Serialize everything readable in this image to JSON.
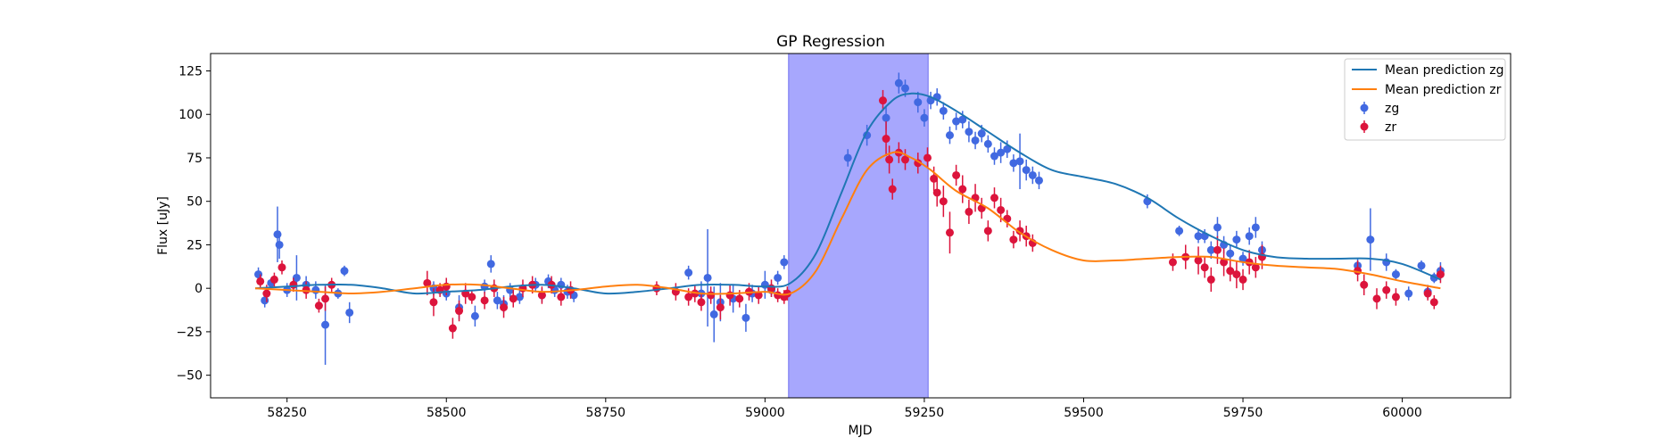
{
  "chart_data": {
    "type": "scatter",
    "title": "GP Regression",
    "xlabel": "MJD",
    "ylabel": "Flux [uJy]",
    "xlim": [
      58130,
      60170
    ],
    "ylim": [
      -63,
      135
    ],
    "xticks": [
      58250,
      58500,
      58750,
      59000,
      59250,
      59500,
      59750,
      60000
    ],
    "yticks": [
      -50,
      -25,
      0,
      25,
      50,
      75,
      100,
      125
    ],
    "grid": false,
    "legend_position": "top-right",
    "shaded_region": {
      "x0": 59037,
      "x1": 59256,
      "color": "#a7a7fd"
    },
    "series": [
      {
        "name": "Mean prediction zg",
        "kind": "line",
        "color": "#1f77b4",
        "x": [
          58200,
          58250,
          58300,
          58350,
          58400,
          58450,
          58500,
          58550,
          58600,
          58650,
          58700,
          58750,
          58800,
          58850,
          58900,
          58950,
          59000,
          59040,
          59080,
          59120,
          59160,
          59200,
          59230,
          59260,
          59300,
          59350,
          59400,
          59450,
          59500,
          59550,
          59600,
          59650,
          59700,
          59750,
          59800,
          59850,
          59900,
          59950,
          60000,
          60060
        ],
        "y": [
          0,
          1,
          2,
          2,
          0,
          -3,
          -2,
          -1,
          1,
          2,
          0,
          -3,
          -2,
          0,
          2,
          2,
          1,
          3,
          20,
          55,
          90,
          108,
          112,
          110,
          102,
          90,
          78,
          68,
          64,
          60,
          52,
          40,
          30,
          22,
          18,
          17,
          17,
          17,
          14,
          5
        ]
      },
      {
        "name": "Mean prediction zr",
        "kind": "line",
        "color": "#ff7f0e",
        "x": [
          58200,
          58250,
          58300,
          58350,
          58400,
          58450,
          58500,
          58550,
          58600,
          58650,
          58700,
          58750,
          58800,
          58850,
          58900,
          58950,
          59000,
          59040,
          59080,
          59120,
          59160,
          59200,
          59230,
          59260,
          59300,
          59350,
          59400,
          59450,
          59500,
          59550,
          59600,
          59650,
          59700,
          59750,
          59800,
          59850,
          59900,
          59950,
          60000,
          60060
        ],
        "y": [
          0,
          -1,
          -2,
          -3,
          -2,
          0,
          2,
          2,
          0,
          -2,
          -1,
          1,
          2,
          0,
          -3,
          -3,
          -2,
          -3,
          10,
          40,
          68,
          78,
          75,
          68,
          56,
          46,
          32,
          22,
          16,
          16,
          17,
          18,
          18,
          15,
          13,
          12,
          11,
          8,
          4,
          0
        ]
      },
      {
        "name": "zg",
        "kind": "errorbar",
        "color": "#4169e1",
        "x": [
          58205,
          58215,
          58225,
          58235,
          58238,
          58250,
          58265,
          58280,
          58295,
          58310,
          58330,
          58340,
          58348,
          58480,
          58500,
          58520,
          58545,
          58560,
          58570,
          58580,
          58590,
          58600,
          58615,
          58640,
          58650,
          58660,
          58670,
          58680,
          58690,
          58700,
          58880,
          58900,
          58910,
          58920,
          58930,
          58950,
          58970,
          58980,
          59000,
          59010,
          59020,
          59030,
          59130,
          59160,
          59190,
          59210,
          59220,
          59240,
          59250,
          59260,
          59270,
          59280,
          59290,
          59300,
          59310,
          59320,
          59330,
          59340,
          59350,
          59360,
          59370,
          59380,
          59390,
          59400,
          59410,
          59420,
          59430,
          59600,
          59650,
          59680,
          59690,
          59700,
          59710,
          59720,
          59730,
          59740,
          59750,
          59760,
          59770,
          59780,
          59930,
          59950,
          59975,
          59990,
          60010,
          60030,
          60040,
          60050,
          60060
        ],
        "y": [
          8,
          -7,
          3,
          31,
          25,
          -1,
          6,
          2,
          -1,
          -21,
          -3,
          10,
          -14,
          0,
          -3,
          -11,
          -16,
          1,
          14,
          -7,
          -9,
          -1,
          -5,
          2,
          -4,
          4,
          -1,
          2,
          -2,
          -4,
          9,
          -3,
          6,
          -15,
          -8,
          -6,
          -17,
          -3,
          2,
          -1,
          6,
          15,
          75,
          88,
          98,
          118,
          115,
          107,
          98,
          108,
          110,
          102,
          88,
          96,
          97,
          90,
          85,
          89,
          83,
          76,
          78,
          80,
          72,
          73,
          68,
          65,
          62,
          50,
          33,
          30,
          30,
          22,
          35,
          25,
          20,
          28,
          17,
          30,
          35,
          22,
          13,
          28,
          15,
          8,
          -3,
          13,
          -2,
          6,
          10
        ],
        "err": [
          4,
          4,
          3,
          16,
          8,
          4,
          13,
          5,
          5,
          23,
          3,
          3,
          6,
          4,
          4,
          7,
          6,
          4,
          5,
          5,
          5,
          4,
          4,
          4,
          4,
          4,
          4,
          4,
          4,
          4,
          4,
          7,
          28,
          16,
          11,
          8,
          8,
          5,
          8,
          4,
          4,
          4,
          5,
          6,
          7,
          6,
          5,
          6,
          5,
          5,
          5,
          5,
          5,
          5,
          5,
          6,
          5,
          5,
          5,
          5,
          6,
          5,
          5,
          16,
          6,
          5,
          5,
          4,
          3,
          4,
          4,
          5,
          6,
          5,
          5,
          5,
          4,
          5,
          6,
          5,
          4,
          18,
          5,
          3,
          4,
          3,
          4,
          3,
          5
        ]
      },
      {
        "name": "zr",
        "kind": "errorbar",
        "color": "#dc143c",
        "x": [
          58208,
          58218,
          58230,
          58242,
          58260,
          58280,
          58300,
          58310,
          58320,
          58470,
          58480,
          58490,
          58500,
          58510,
          58520,
          58530,
          58540,
          58560,
          58575,
          58590,
          58605,
          58620,
          58635,
          58650,
          58665,
          58680,
          58695,
          58830,
          58860,
          58880,
          58890,
          58900,
          58915,
          58930,
          58945,
          58960,
          58975,
          58990,
          59010,
          59020,
          59030,
          59035,
          59185,
          59190,
          59195,
          59200,
          59210,
          59220,
          59240,
          59255,
          59265,
          59270,
          59280,
          59290,
          59300,
          59310,
          59320,
          59330,
          59340,
          59350,
          59360,
          59370,
          59380,
          59390,
          59400,
          59410,
          59420,
          59640,
          59660,
          59680,
          59690,
          59700,
          59710,
          59720,
          59730,
          59740,
          59750,
          59760,
          59770,
          59780,
          59930,
          59940,
          59960,
          59975,
          59990,
          60040,
          60050,
          60060
        ],
        "y": [
          4,
          -3,
          5,
          12,
          2,
          -1,
          -10,
          -6,
          2,
          3,
          -8,
          -1,
          1,
          -23,
          -13,
          -3,
          -5,
          -7,
          0,
          -11,
          -6,
          0,
          2,
          -4,
          2,
          -5,
          -1,
          0,
          -2,
          -5,
          -3,
          -8,
          -4,
          -11,
          -4,
          -6,
          -2,
          -4,
          0,
          -4,
          -5,
          -3,
          108,
          86,
          74,
          57,
          78,
          74,
          72,
          75,
          63,
          55,
          50,
          32,
          65,
          57,
          44,
          52,
          46,
          33,
          52,
          45,
          40,
          28,
          33,
          30,
          26,
          15,
          18,
          16,
          12,
          5,
          22,
          15,
          10,
          8,
          5,
          15,
          12,
          18,
          10,
          2,
          -6,
          -1,
          -5,
          -3,
          -8,
          8
        ],
        "err": [
          4,
          5,
          4,
          4,
          4,
          5,
          4,
          7,
          4,
          7,
          8,
          4,
          5,
          6,
          6,
          6,
          4,
          5,
          5,
          6,
          5,
          5,
          5,
          5,
          5,
          5,
          5,
          4,
          5,
          5,
          5,
          5,
          5,
          7,
          6,
          5,
          5,
          5,
          5,
          4,
          4,
          4,
          6,
          10,
          8,
          6,
          6,
          6,
          6,
          6,
          7,
          8,
          9,
          12,
          6,
          8,
          7,
          8,
          6,
          6,
          6,
          7,
          5,
          5,
          6,
          6,
          5,
          5,
          7,
          8,
          6,
          7,
          8,
          8,
          6,
          8,
          6,
          7,
          6,
          7,
          6,
          6,
          6,
          5,
          5,
          4,
          4,
          5
        ]
      }
    ]
  }
}
